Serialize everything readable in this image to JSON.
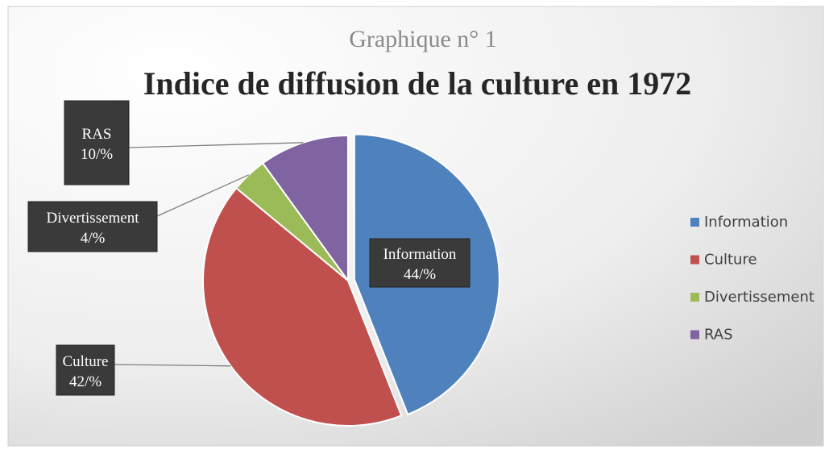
{
  "chart_data": {
    "type": "pie",
    "subtitle": "Graphique n° 1",
    "title": "Indice de diffusion de la culture en 1972",
    "categories": [
      "Information",
      "Culture",
      "Divertissement",
      "RAS"
    ],
    "values": [
      44,
      42,
      4,
      10
    ],
    "value_labels": [
      "44/%",
      "42/%",
      "4/%",
      "10/%"
    ],
    "colors": [
      "#4f81bd",
      "#c0504d",
      "#9bbb59",
      "#8064a2"
    ],
    "legend": "right"
  }
}
